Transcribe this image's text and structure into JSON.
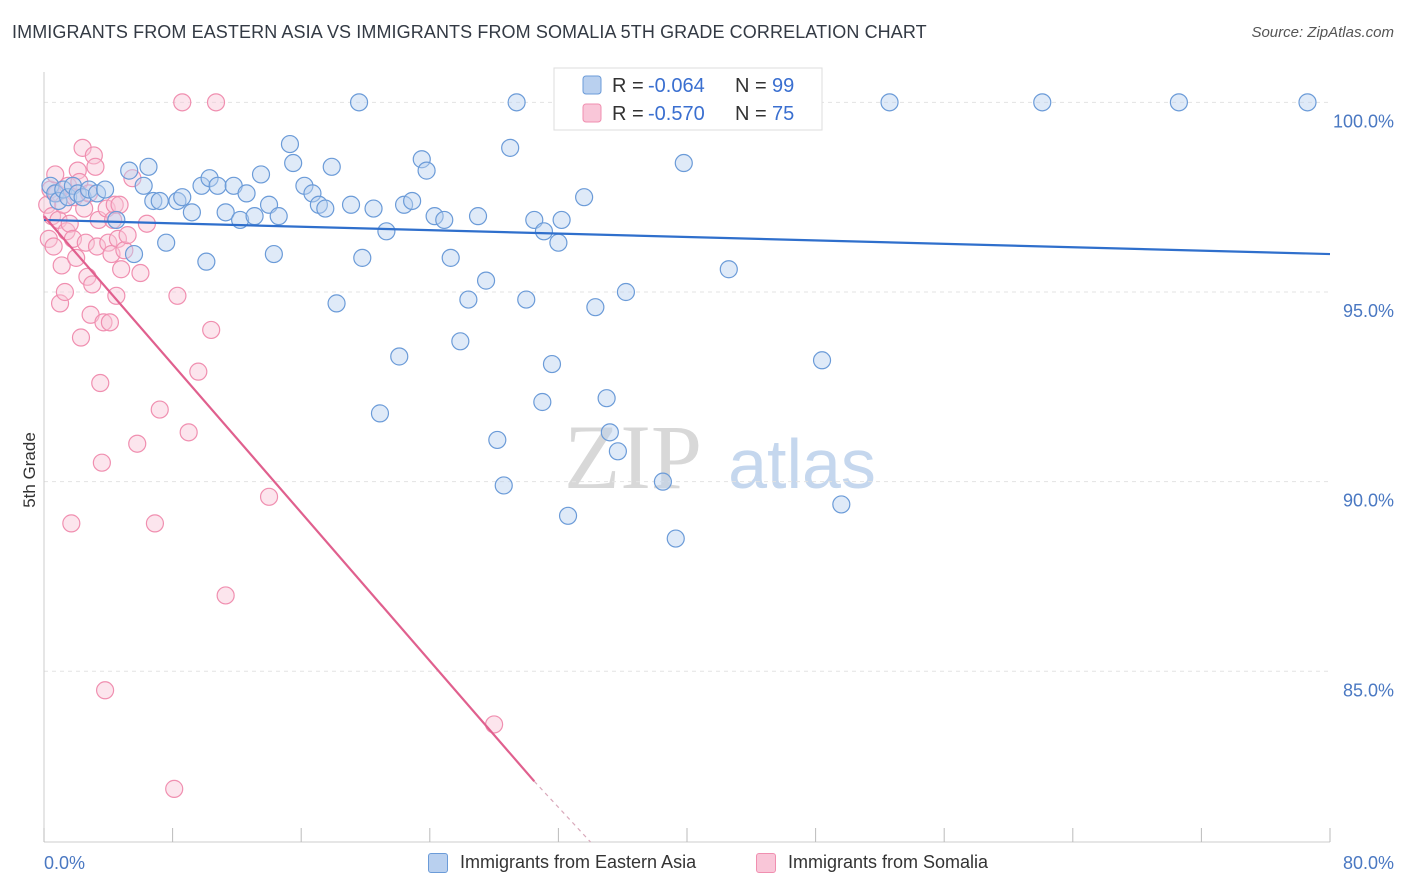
{
  "title": "IMMIGRANTS FROM EASTERN ASIA VS IMMIGRANTS FROM SOMALIA 5TH GRADE CORRELATION CHART",
  "source": "Source: ZipAtlas.com",
  "watermark": {
    "zip": "ZIP",
    "atlas": "atlas"
  },
  "colors": {
    "blue": "#6b9bd8",
    "blue_line": "#2f6fcc",
    "pink": "#f08fb0",
    "pink_line": "#e0608e"
  },
  "legend_box": {
    "rows": [
      {
        "r_label": "R = ",
        "r_value": "-0.064",
        "n_label": "N = ",
        "n_value": "99"
      },
      {
        "r_label": "R = ",
        "r_value": "-0.570",
        "n_label": "N = ",
        "n_value": "75"
      }
    ]
  },
  "chart_data": {
    "type": "scatter",
    "title": "IMMIGRANTS FROM EASTERN ASIA VS IMMIGRANTS FROM SOMALIA 5TH GRADE CORRELATION CHART",
    "xlabel": "",
    "ylabel": "5th Grade",
    "xlim": [
      0,
      80
    ],
    "ylim": [
      80.5,
      100.8
    ],
    "x_tick_labels": [
      "0.0%",
      "80.0%"
    ],
    "y_ticks": [
      85,
      90,
      95,
      100
    ],
    "y_tick_labels": [
      "85.0%",
      "90.0%",
      "95.0%",
      "100.0%"
    ],
    "grid": true,
    "legend_position": "bottom",
    "series": [
      {
        "name": "Immigrants from Eastern Asia",
        "color": "#6b9bd8",
        "R": -0.064,
        "N": 99,
        "trend": {
          "x": [
            0,
            80
          ],
          "y": [
            96.9,
            96.0
          ]
        },
        "points": [
          [
            0.4,
            97.8
          ],
          [
            0.7,
            97.6
          ],
          [
            0.9,
            97.4
          ],
          [
            1.2,
            97.7
          ],
          [
            1.5,
            97.5
          ],
          [
            1.8,
            97.8
          ],
          [
            2.1,
            97.6
          ],
          [
            2.4,
            97.5
          ],
          [
            2.8,
            97.7
          ],
          [
            3.3,
            97.6
          ],
          [
            3.8,
            97.7
          ],
          [
            4.5,
            96.9
          ],
          [
            5.3,
            98.2
          ],
          [
            5.6,
            96.0
          ],
          [
            6.2,
            97.8
          ],
          [
            6.5,
            98.3
          ],
          [
            6.8,
            97.4
          ],
          [
            7.2,
            97.4
          ],
          [
            7.6,
            96.3
          ],
          [
            8.3,
            97.4
          ],
          [
            8.6,
            97.5
          ],
          [
            9.2,
            97.1
          ],
          [
            9.8,
            97.8
          ],
          [
            10.1,
            95.8
          ],
          [
            10.3,
            98.0
          ],
          [
            10.8,
            97.8
          ],
          [
            11.3,
            97.1
          ],
          [
            11.8,
            97.8
          ],
          [
            12.2,
            96.9
          ],
          [
            12.6,
            97.6
          ],
          [
            13.1,
            97.0
          ],
          [
            13.5,
            98.1
          ],
          [
            14.0,
            97.3
          ],
          [
            14.3,
            96.0
          ],
          [
            14.6,
            97.0
          ],
          [
            15.3,
            98.9
          ],
          [
            15.5,
            98.4
          ],
          [
            16.2,
            97.8
          ],
          [
            16.7,
            97.6
          ],
          [
            17.1,
            97.3
          ],
          [
            17.5,
            97.2
          ],
          [
            17.9,
            98.3
          ],
          [
            18.2,
            94.7
          ],
          [
            19.1,
            97.3
          ],
          [
            19.6,
            100.0
          ],
          [
            19.8,
            95.9
          ],
          [
            20.5,
            97.2
          ],
          [
            20.9,
            91.8
          ],
          [
            21.3,
            96.6
          ],
          [
            22.1,
            93.3
          ],
          [
            22.4,
            97.3
          ],
          [
            22.9,
            97.4
          ],
          [
            23.5,
            98.5
          ],
          [
            23.8,
            98.2
          ],
          [
            24.3,
            97.0
          ],
          [
            24.9,
            96.9
          ],
          [
            25.3,
            95.9
          ],
          [
            25.9,
            93.7
          ],
          [
            26.4,
            94.8
          ],
          [
            27.0,
            97.0
          ],
          [
            27.5,
            95.3
          ],
          [
            28.2,
            91.1
          ],
          [
            28.6,
            89.9
          ],
          [
            29.0,
            98.8
          ],
          [
            29.4,
            100.0
          ],
          [
            30.0,
            94.8
          ],
          [
            30.5,
            96.9
          ],
          [
            31.0,
            92.1
          ],
          [
            31.1,
            96.6
          ],
          [
            31.6,
            93.1
          ],
          [
            32.0,
            96.3
          ],
          [
            32.2,
            96.9
          ],
          [
            32.6,
            89.1
          ],
          [
            33.6,
            97.5
          ],
          [
            34.3,
            94.6
          ],
          [
            35.0,
            92.2
          ],
          [
            35.2,
            91.3
          ],
          [
            35.7,
            90.8
          ],
          [
            36.2,
            95.0
          ],
          [
            37.3,
            100.0
          ],
          [
            38.5,
            90.0
          ],
          [
            38.9,
            100.0
          ],
          [
            39.3,
            88.5
          ],
          [
            39.8,
            98.4
          ],
          [
            41.4,
            100.0
          ],
          [
            42.6,
            95.6
          ],
          [
            43.0,
            100.0
          ],
          [
            48.4,
            93.2
          ],
          [
            49.6,
            89.4
          ],
          [
            52.6,
            100.0
          ],
          [
            62.1,
            100.0
          ],
          [
            70.6,
            100.0
          ],
          [
            78.6,
            100.0
          ]
        ]
      },
      {
        "name": "Immigrants from Somalia",
        "color": "#f08fb0",
        "R": -0.57,
        "N": 75,
        "trend": {
          "x": [
            0,
            30.5
          ],
          "y": [
            97.0,
            82.1
          ]
        },
        "trend_dashed": {
          "x": [
            30.5,
            34.0
          ],
          "y": [
            82.1,
            80.5
          ]
        },
        "points": [
          [
            0.2,
            97.3
          ],
          [
            0.3,
            96.4
          ],
          [
            0.4,
            97.7
          ],
          [
            0.5,
            97.0
          ],
          [
            0.6,
            96.2
          ],
          [
            0.7,
            98.1
          ],
          [
            0.8,
            97.6
          ],
          [
            0.9,
            96.9
          ],
          [
            1.0,
            94.7
          ],
          [
            1.1,
            95.7
          ],
          [
            1.2,
            97.3
          ],
          [
            1.3,
            95.0
          ],
          [
            1.4,
            96.6
          ],
          [
            1.5,
            97.8
          ],
          [
            1.6,
            96.8
          ],
          [
            1.7,
            88.9
          ],
          [
            1.8,
            96.4
          ],
          [
            1.9,
            97.5
          ],
          [
            2.0,
            95.9
          ],
          [
            2.1,
            98.2
          ],
          [
            2.2,
            97.9
          ],
          [
            2.3,
            93.8
          ],
          [
            2.4,
            98.8
          ],
          [
            2.5,
            97.2
          ],
          [
            2.6,
            96.3
          ],
          [
            2.7,
            95.4
          ],
          [
            2.8,
            97.6
          ],
          [
            2.9,
            94.4
          ],
          [
            3.0,
            95.2
          ],
          [
            3.1,
            98.6
          ],
          [
            3.2,
            98.3
          ],
          [
            3.3,
            96.2
          ],
          [
            3.4,
            96.9
          ],
          [
            3.5,
            92.6
          ],
          [
            3.6,
            90.5
          ],
          [
            3.7,
            94.2
          ],
          [
            3.8,
            84.5
          ],
          [
            3.9,
            97.2
          ],
          [
            4.0,
            96.3
          ],
          [
            4.1,
            94.2
          ],
          [
            4.2,
            96.0
          ],
          [
            4.3,
            96.9
          ],
          [
            4.4,
            97.3
          ],
          [
            4.5,
            94.9
          ],
          [
            4.6,
            96.4
          ],
          [
            4.7,
            97.3
          ],
          [
            4.8,
            95.6
          ],
          [
            5.0,
            96.1
          ],
          [
            5.2,
            96.5
          ],
          [
            5.5,
            98.0
          ],
          [
            5.8,
            91.0
          ],
          [
            6.0,
            95.5
          ],
          [
            6.4,
            96.8
          ],
          [
            6.9,
            88.9
          ],
          [
            7.2,
            91.9
          ],
          [
            8.1,
            81.9
          ],
          [
            8.3,
            94.9
          ],
          [
            8.6,
            100.0
          ],
          [
            9.0,
            91.3
          ],
          [
            9.6,
            92.9
          ],
          [
            10.4,
            94.0
          ],
          [
            10.7,
            100.0
          ],
          [
            11.3,
            87.0
          ],
          [
            14.0,
            89.6
          ],
          [
            28.0,
            83.6
          ]
        ]
      }
    ]
  }
}
